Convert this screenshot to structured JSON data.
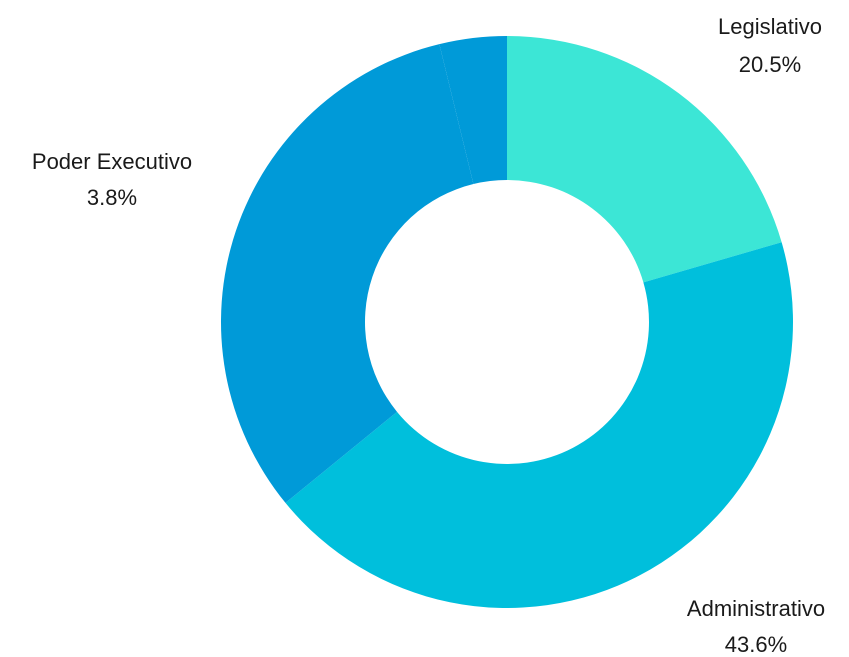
{
  "chart_data": {
    "type": "pie",
    "categories": [
      "Legislativo",
      "Administrativo",
      null,
      "Poder Executivo"
    ],
    "values": [
      20.5,
      43.6,
      32.1,
      3.8
    ],
    "value_labels": [
      "20.5%",
      "43.6%",
      null,
      "3.8%"
    ],
    "colors": [
      "#3ce6d6",
      "#00bfdc",
      "#009ad8",
      "#009ad8"
    ],
    "donut": true
  }
}
